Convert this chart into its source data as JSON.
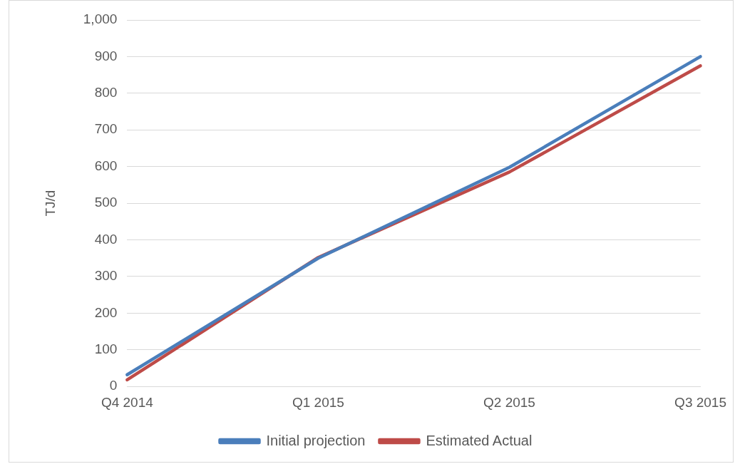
{
  "chart_data": {
    "type": "line",
    "ylabel": "TJ/d",
    "categories": [
      "Q4 2014",
      "Q1 2015",
      "Q2 2015",
      "Q3 2015"
    ],
    "series": [
      {
        "name": "Initial projection",
        "color": "#4a7ebb",
        "values": [
          32,
          350,
          598,
          900
        ]
      },
      {
        "name": "Estimated Actual",
        "color": "#be4b48",
        "values": [
          18,
          352,
          585,
          875
        ]
      }
    ],
    "ylim": [
      0,
      1000
    ],
    "yticks": [
      {
        "value": 0,
        "label": "0"
      },
      {
        "value": 100,
        "label": "100"
      },
      {
        "value": 200,
        "label": "200"
      },
      {
        "value": 300,
        "label": "300"
      },
      {
        "value": 400,
        "label": "400"
      },
      {
        "value": 500,
        "label": "500"
      },
      {
        "value": 600,
        "label": "600"
      },
      {
        "value": 700,
        "label": "700"
      },
      {
        "value": 800,
        "label": "800"
      },
      {
        "value": 900,
        "label": "900"
      },
      {
        "value": 1000,
        "label": "1,000"
      }
    ],
    "grid": "y",
    "legend": "bottom",
    "marker": "none",
    "line_style": "solid"
  }
}
